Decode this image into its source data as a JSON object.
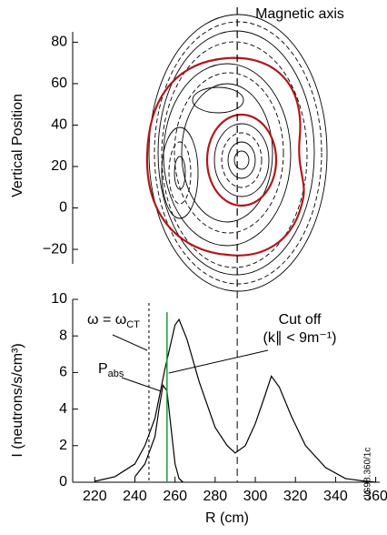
{
  "chart_data": [
    {
      "type": "contour",
      "ylabel": "Vertical Position",
      "ylim": [
        -27,
        85
      ],
      "yticks": [
        {
          "value": -20,
          "label": "−20"
        },
        0,
        20,
        40,
        60,
        80
      ],
      "annotation": "Magnetic axis"
    },
    {
      "type": "line",
      "xlabel": "R (cm)",
      "ylabel": "I (neutrons/s/cm³)",
      "xlim": [
        209,
        362
      ],
      "xticks": [
        220,
        240,
        260,
        280,
        300,
        320,
        340,
        360
      ],
      "ylim": [
        0,
        10
      ],
      "yticks": [
        0,
        2,
        4,
        6,
        8,
        10
      ],
      "series": [
        {
          "name": "Cut off",
          "color": "#000000",
          "x": [
            220,
            230,
            240,
            245,
            250,
            255,
            260,
            262,
            266,
            272,
            280,
            286,
            290,
            295,
            300,
            305,
            308,
            312,
            318,
            325,
            335,
            345,
            355,
            360
          ],
          "values": [
            0.05,
            0.3,
            1,
            2,
            3.5,
            6.2,
            8.6,
            8.9,
            7.8,
            5.5,
            3,
            2,
            1.6,
            2,
            3.2,
            4.8,
            5.8,
            5.2,
            3.6,
            2,
            0.8,
            0.2,
            0.05,
            0
          ]
        },
        {
          "name": "P",
          "subname": "abs",
          "color": "#000000",
          "x": [
            240,
            245,
            250,
            252,
            254,
            256,
            258,
            260,
            262,
            264
          ],
          "values": [
            0.3,
            1,
            2.5,
            4,
            5.3,
            5,
            3,
            1,
            0.2,
            0
          ]
        }
      ],
      "vlines": [
        {
          "x": 247,
          "style": "dotted",
          "label": "ω = ω",
          "sublabel": "CT",
          "ymax": 9.8
        },
        {
          "x": 256,
          "style": "solid",
          "color": "#1a9a3a",
          "ymax": 9.3
        },
        {
          "x": 291,
          "style": "dashed",
          "label": "(k∥ < 9m⁻¹)",
          "ymax": 10
        }
      ],
      "note": "JG98.360/1c"
    }
  ]
}
